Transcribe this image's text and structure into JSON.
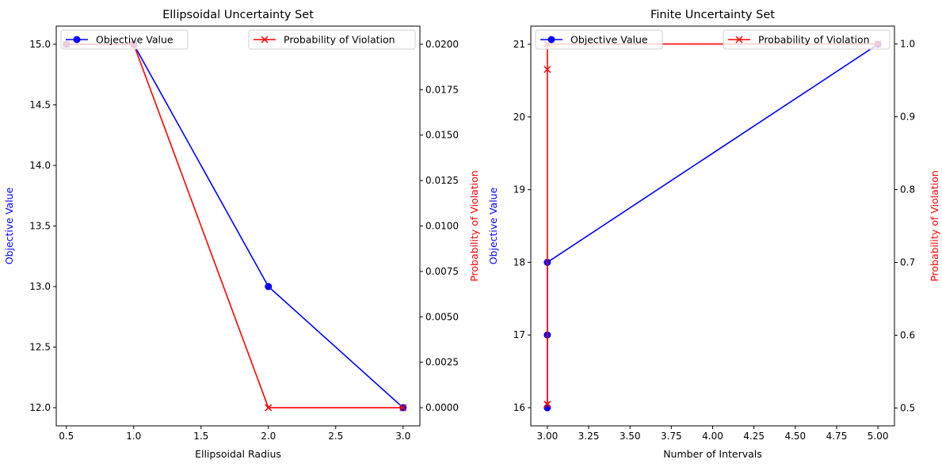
{
  "chart_data": [
    {
      "type": "line",
      "title": "Ellipsoidal Uncertainty Set",
      "xlabel": "Ellipsoidal Radius",
      "ylabel": "Objective Value",
      "y2label": "Probability of Violation",
      "xlim": [
        0.425,
        3.125
      ],
      "ylim": [
        11.85,
        15.15
      ],
      "y2lim": [
        -0.001,
        0.021
      ],
      "xticks": [
        "0.5",
        "1.0",
        "1.5",
        "2.0",
        "2.5",
        "3.0"
      ],
      "yticks": [
        "12.0",
        "12.5",
        "13.0",
        "13.5",
        "14.0",
        "14.5",
        "15.0"
      ],
      "y2ticks": [
        "0.0000",
        "0.0025",
        "0.0050",
        "0.0075",
        "0.0100",
        "0.0125",
        "0.0150",
        "0.0175",
        "0.0200"
      ],
      "grid": false,
      "series": [
        {
          "name": "Objective Value",
          "axis": "left",
          "color": "#0000ff",
          "marker": "circle",
          "x": [
            0.5,
            1.0,
            2.0,
            3.0
          ],
          "y": [
            15,
            15,
            13,
            12
          ]
        },
        {
          "name": "Probability of Violation",
          "axis": "right",
          "color": "#ff0000",
          "marker": "x",
          "x": [
            0.5,
            1.0,
            2.0,
            3.0
          ],
          "y": [
            0.02,
            0.02,
            0.0,
            0.0
          ]
        }
      ],
      "legends": [
        {
          "series": "Objective Value",
          "placement": "upper left"
        },
        {
          "series": "Probability of Violation",
          "placement": "upper right"
        }
      ]
    },
    {
      "type": "line",
      "title": "Finite Uncertainty Set",
      "xlabel": "Number of Intervals",
      "ylabel": "Objective Value",
      "y2label": "Probability of Violation",
      "xlim": [
        2.9,
        5.1
      ],
      "ylim": [
        15.75,
        21.25
      ],
      "y2lim": [
        0.4755,
        1.0245
      ],
      "xticks": [
        "3.00",
        "3.25",
        "3.50",
        "3.75",
        "4.00",
        "4.25",
        "4.50",
        "4.75",
        "5.00"
      ],
      "yticks": [
        "16",
        "17",
        "18",
        "19",
        "20",
        "21"
      ],
      "y2ticks": [
        "0.5",
        "0.6",
        "0.7",
        "0.8",
        "0.9",
        "1.0"
      ],
      "grid": false,
      "series": [
        {
          "name": "Objective Value",
          "axis": "left",
          "color": "#0000ff",
          "marker": "circle",
          "x": [
            3,
            3,
            3,
            3,
            5
          ],
          "y": [
            16,
            16,
            17,
            18,
            21
          ]
        },
        {
          "name": "Probability of Violation",
          "axis": "right",
          "color": "#ff0000",
          "marker": "x",
          "x": [
            3,
            3,
            3,
            3,
            5
          ],
          "y": [
            0.505,
            0.505,
            0.965,
            1.0,
            1.0
          ]
        }
      ],
      "legends": [
        {
          "series": "Objective Value",
          "placement": "upper left"
        },
        {
          "series": "Probability of Violation",
          "placement": "upper right"
        }
      ]
    }
  ]
}
